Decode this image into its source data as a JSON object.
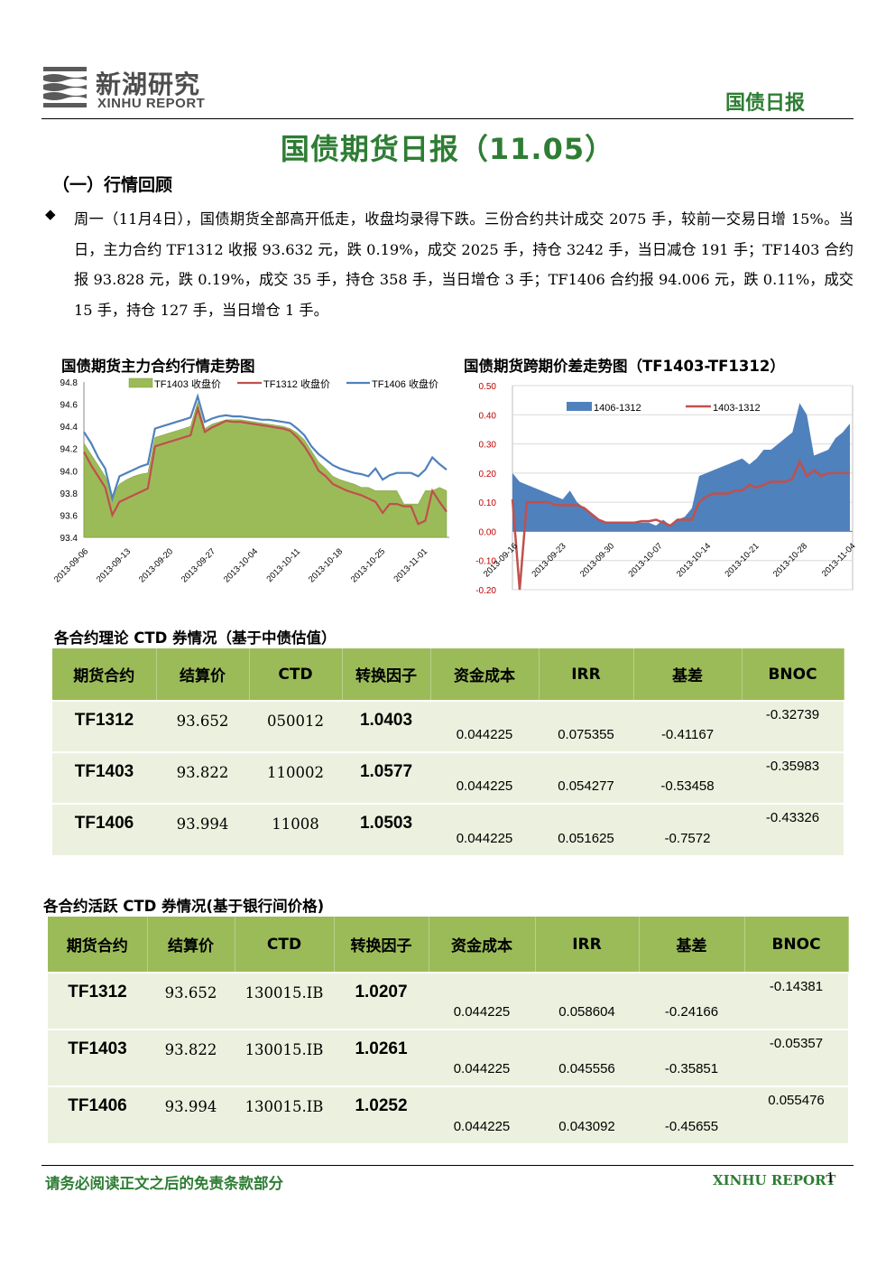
{
  "header": {
    "logo_cn": "新湖研究",
    "logo_en": "XINHU REPORT",
    "tag": "国债日报"
  },
  "title": "国债期货日报（11.05）",
  "section_heading": "（一）行情回顾",
  "summary": "周一（11月4日），国债期货全部高开低走，收盘均录得下跌。三份合约共计成交 2075 手，较前一交易日增 15%。当日，主力合约 TF1312 收报 93.632 元，跌 0.19%，成交 2025 手，持仓 3242 手，当日减仓 191 手；TF1403 合约报 93.828 元，跌 0.19%，成交 35 手，持仓 358 手，当日增仓 3 手；TF1406 合约报 94.006 元，跌 0.11%，成交 15 手，持仓 127 手，当日增仓 1 手。",
  "charts": [
    {
      "title": "国债期货主力合约行情走势图",
      "type": "line",
      "legend": [
        "TF1403 收盘价",
        "TF1312 收盘价",
        "TF1406 收盘价"
      ],
      "ylim": [
        93.4,
        94.8
      ],
      "yticks": [
        "93.4",
        "93.6",
        "93.8",
        "94.0",
        "94.2",
        "94.4",
        "94.6",
        "94.8"
      ],
      "xticks": [
        "2013-09-06",
        "2013-09-13",
        "2013-09-20",
        "2013-09-27",
        "2013-10-04",
        "2013-10-11",
        "2013-10-18",
        "2013-10-25",
        "2013-11-01"
      ],
      "colors": {
        "TF1403": "#9bbb59",
        "TF1312": "#c0504d",
        "TF1406": "#4f81bd"
      }
    },
    {
      "title": "国债期货跨期价差走势图（TF1403-TF1312）",
      "type": "area",
      "legend": [
        "1406-1312",
        "1403-1312"
      ],
      "ylim": [
        -0.2,
        0.5
      ],
      "yticks": [
        "-0.20",
        "-0.10",
        "0.00",
        "0.10",
        "0.20",
        "0.30",
        "0.40",
        "0.50"
      ],
      "xticks": [
        "2013-09-16",
        "2013-09-23",
        "2013-09-30",
        "2013-10-07",
        "2013-10-14",
        "2013-10-21",
        "2013-10-28",
        "2013-11-04"
      ],
      "colors": {
        "1406-1312": "#4f81bd",
        "1403-1312": "#c0504d"
      }
    }
  ],
  "chart_data": [
    {
      "type": "line",
      "title": "国债期货主力合约行情走势图",
      "ylim": [
        93.4,
        94.8
      ],
      "series": [
        {
          "name": "TF1403 收盘价",
          "values": [
            94.25,
            94.15,
            94.05,
            93.95,
            93.78,
            93.88,
            93.92,
            93.95,
            93.97,
            93.98,
            94.3,
            94.32,
            94.34,
            94.36,
            94.38,
            94.4,
            94.62,
            94.38,
            94.42,
            94.44,
            94.46,
            94.46,
            94.46,
            94.45,
            94.44,
            94.43,
            94.42,
            94.41,
            94.4,
            94.38,
            94.34,
            94.28,
            94.18,
            94.08,
            94.02,
            93.95,
            93.92,
            93.9,
            93.88,
            93.85,
            93.85,
            93.82,
            93.82,
            93.82,
            93.82,
            93.7,
            93.7,
            93.7,
            93.82,
            93.82,
            93.85,
            93.82
          ]
        },
        {
          "name": "TF1312 收盘价",
          "values": [
            94.17,
            94.05,
            93.95,
            93.85,
            93.6,
            93.72,
            93.75,
            93.78,
            93.81,
            93.84,
            94.22,
            94.24,
            94.26,
            94.28,
            94.3,
            94.32,
            94.56,
            94.35,
            94.39,
            94.42,
            94.45,
            94.44,
            94.44,
            94.43,
            94.42,
            94.41,
            94.4,
            94.39,
            94.38,
            94.36,
            94.3,
            94.22,
            94.12,
            94.0,
            93.95,
            93.88,
            93.85,
            93.82,
            93.8,
            93.78,
            93.75,
            93.72,
            93.62,
            93.7,
            93.7,
            93.68,
            93.68,
            93.52,
            93.55,
            93.82,
            93.72,
            93.63
          ]
        },
        {
          "name": "TF1406 收盘价",
          "values": [
            94.35,
            94.25,
            94.12,
            94.02,
            93.75,
            93.95,
            93.98,
            94.01,
            94.04,
            94.06,
            94.38,
            94.4,
            94.42,
            94.44,
            94.46,
            94.48,
            94.67,
            94.44,
            94.47,
            94.49,
            94.5,
            94.49,
            94.49,
            94.48,
            94.47,
            94.46,
            94.46,
            94.45,
            94.44,
            94.43,
            94.38,
            94.32,
            94.22,
            94.15,
            94.1,
            94.05,
            94.02,
            94.0,
            93.98,
            93.97,
            93.95,
            94.02,
            93.92,
            93.96,
            93.98,
            93.98,
            93.98,
            93.95,
            94.01,
            94.12,
            94.06,
            94.01
          ]
        }
      ]
    },
    {
      "type": "area",
      "title": "国债期货跨期价差走势图（TF1403-TF1312）",
      "ylim": [
        -0.2,
        0.5
      ],
      "series": [
        {
          "name": "1406-1312",
          "values": [
            0.2,
            0.17,
            0.16,
            0.15,
            0.14,
            0.13,
            0.12,
            0.11,
            0.14,
            0.1,
            0.08,
            0.06,
            0.04,
            0.03,
            0.03,
            0.03,
            0.03,
            0.03,
            0.03,
            0.03,
            0.02,
            0.04,
            0.02,
            0.04,
            0.05,
            0.08,
            0.19,
            0.2,
            0.21,
            0.22,
            0.23,
            0.24,
            0.25,
            0.23,
            0.25,
            0.28,
            0.28,
            0.3,
            0.32,
            0.34,
            0.44,
            0.4,
            0.26,
            0.27,
            0.28,
            0.32,
            0.34,
            0.37
          ]
        },
        {
          "name": "1403-1312",
          "values": [
            0.11,
            -0.2,
            0.1,
            0.1,
            0.1,
            0.1,
            0.09,
            0.09,
            0.09,
            0.09,
            0.08,
            0.06,
            0.04,
            0.03,
            0.03,
            0.03,
            0.03,
            0.03,
            0.035,
            0.035,
            0.04,
            0.03,
            0.02,
            0.04,
            0.04,
            0.04,
            0.1,
            0.12,
            0.13,
            0.13,
            0.13,
            0.14,
            0.14,
            0.16,
            0.15,
            0.16,
            0.17,
            0.17,
            0.17,
            0.18,
            0.24,
            0.19,
            0.21,
            0.19,
            0.2,
            0.2,
            0.2,
            0.2
          ]
        }
      ]
    }
  ],
  "table1": {
    "title": "各合约理论 CTD 券情况（基于中债估值）",
    "headers": [
      "期货合约",
      "结算价",
      "CTD",
      "转换因子",
      "资金成本",
      "IRR",
      "基差",
      "BNOC"
    ],
    "rows": [
      [
        "TF1312",
        "93.652",
        "050012",
        "1.0403",
        "0.044225",
        "0.075355",
        "-0.41167",
        "-0.32739"
      ],
      [
        "TF1403",
        "93.822",
        "110002",
        "1.0577",
        "0.044225",
        "0.054277",
        "-0.53458",
        "-0.35983"
      ],
      [
        "TF1406",
        "93.994",
        "11008",
        "1.0503",
        "0.044225",
        "0.051625",
        "-0.7572",
        "-0.43326"
      ]
    ]
  },
  "table2": {
    "title": "各合约活跃 CTD 券情况(基于银行间价格)",
    "headers": [
      "期货合约",
      "结算价",
      "CTD",
      "转换因子",
      "资金成本",
      "IRR",
      "基差",
      "BNOC"
    ],
    "rows": [
      [
        "TF1312",
        "93.652",
        "130015.IB",
        "1.0207",
        "0.044225",
        "0.058604",
        "-0.24166",
        "-0.14381"
      ],
      [
        "TF1403",
        "93.822",
        "130015.IB",
        "1.0261",
        "0.044225",
        "0.045556",
        "-0.35851",
        "-0.05357"
      ],
      [
        "TF1406",
        "93.994",
        "130015.IB",
        "1.0252",
        "0.044225",
        "0.043092",
        "-0.45655",
        "0.055476"
      ]
    ]
  },
  "footer": {
    "disclaimer": "请务必阅读正文之后的免责条款部分",
    "brand": "XINHU REPORT",
    "page": "1"
  }
}
